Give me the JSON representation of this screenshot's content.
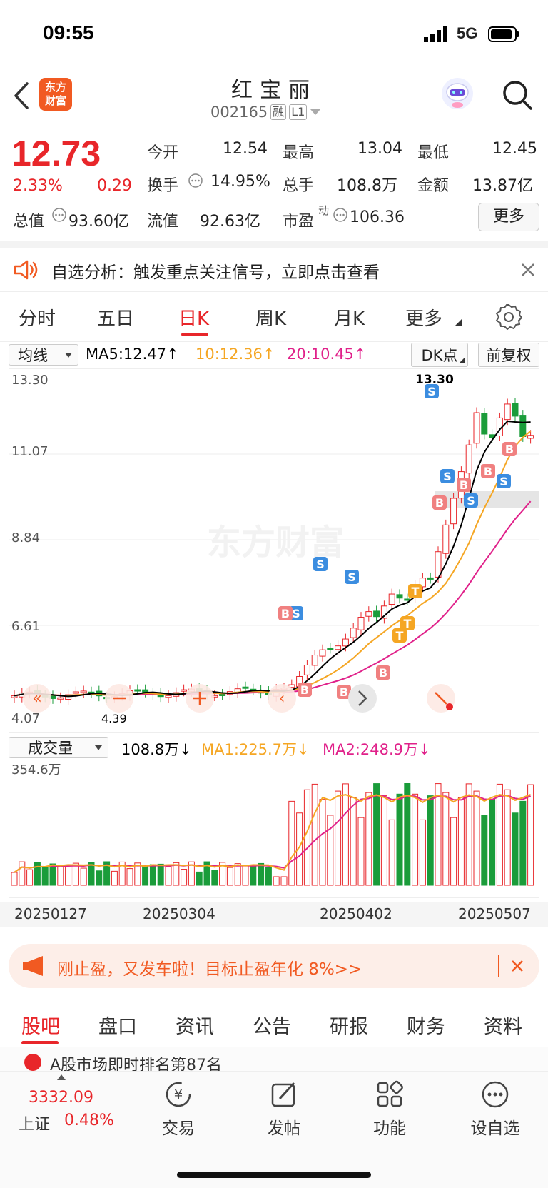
{
  "status": {
    "time": "09:55",
    "network": "5G"
  },
  "header": {
    "logo_line1": "东方",
    "logo_line2": "财富",
    "title": "红宝丽",
    "code": "002165",
    "tag_margin": "融",
    "tag_level": "L1"
  },
  "quote": {
    "price": "12.73",
    "change_pct": "2.33%",
    "change": "0.29",
    "open_label": "今开",
    "open": "12.54",
    "high_label": "最高",
    "high": "13.04",
    "low_label": "最低",
    "low": "12.45",
    "turnover_label": "换手",
    "turnover": "14.95%",
    "volume_label": "总手",
    "volume": "108.8万",
    "amount_label": "金额",
    "amount": "13.87亿",
    "mktcap_label": "总值",
    "mktcap": "93.60亿",
    "float_label": "流值",
    "float_cap": "92.63亿",
    "pe_label": "市盈",
    "pe_sup": "动",
    "pe": "106.36",
    "more": "更多"
  },
  "alert": {
    "text": "自选分析：触发重点关注信号，立即点击查看"
  },
  "tabs": [
    "分时",
    "五日",
    "日K",
    "周K",
    "月K",
    "更多"
  ],
  "ma_bar": {
    "select": "均线",
    "ma5": "MA5:12.47↑",
    "ma10": "10:12.36↑",
    "ma20": "20:10.45↑",
    "dk": "DK点",
    "adjust": "前复权"
  },
  "kline": {
    "y_top": "13.30",
    "y_2": "11.07",
    "y_3": "8.84",
    "y_4": "6.61",
    "y_low": "4.07",
    "low_label": "4.39",
    "high_label": "13.30",
    "watermark": "东方财富"
  },
  "volume_bar": {
    "select": "成交量",
    "vol": "108.8万↓",
    "ma1": "MA1:225.7万↓",
    "ma2": "MA2:248.9万↓",
    "max": "354.6万"
  },
  "dates": [
    "20250127",
    "20250304",
    "20250402",
    "20250507"
  ],
  "ad": {
    "text": "刚止盈，又发车啦！目标止盈年化 8%>>"
  },
  "bottom_tabs": [
    "股吧",
    "盘口",
    "资讯",
    "公告",
    "研报",
    "财务",
    "资料"
  ],
  "peek": {
    "text": "A股市场即时排名第87名"
  },
  "bottom_nav": {
    "index_value": "3332.09",
    "index_name": "上证",
    "index_pct": "0.48%",
    "trade": "交易",
    "post": "发帖",
    "func": "功能",
    "watch": "设自选"
  },
  "colors": {
    "up": "#e8262a",
    "down": "#1a9c3a",
    "ma5": "#000000",
    "ma10": "#f5a623",
    "ma20": "#e0218a"
  }
}
